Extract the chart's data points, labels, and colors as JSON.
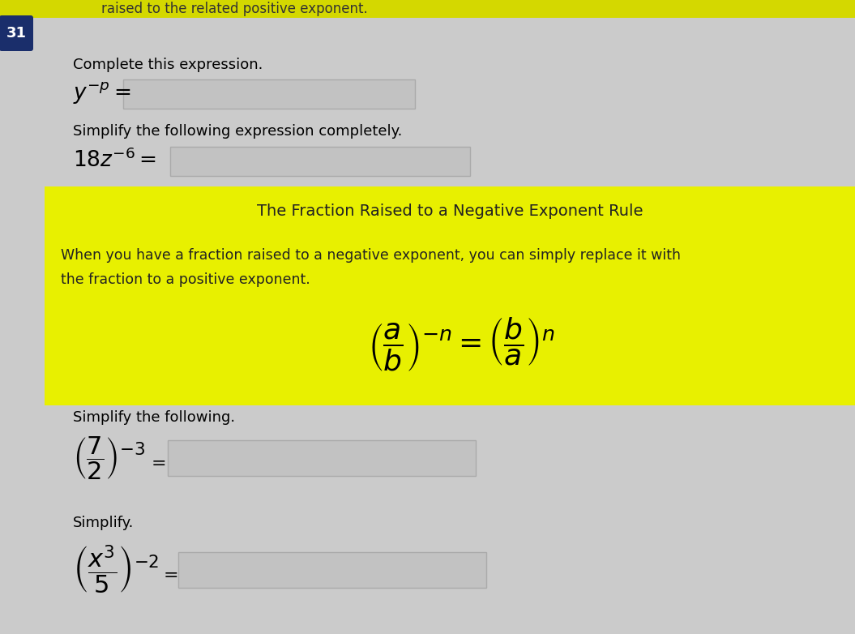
{
  "bg_color": "#cbcbcb",
  "yellow_bg": "#e8f000",
  "input_box_color": "#c2c2c2",
  "input_border_color": "#aaaaaa",
  "top_bar_color": "#d4d800",
  "number_bg": "#1a2e6b",
  "number_text": "#ffffff",
  "number": "31",
  "top_text": "raised to the related positive exponent.",
  "section1_label": "Complete this expression.",
  "section2_label": "Simplify the following expression completely.",
  "yellow_title": "The Fraction Raised to a Negative Exponent Rule",
  "yellow_body1": "When you have a fraction raised to a negative exponent, you can simply replace it with",
  "yellow_body2": "the fraction to a positive exponent.",
  "section3_label": "Simplify the following.",
  "section4_label": "Simplify."
}
